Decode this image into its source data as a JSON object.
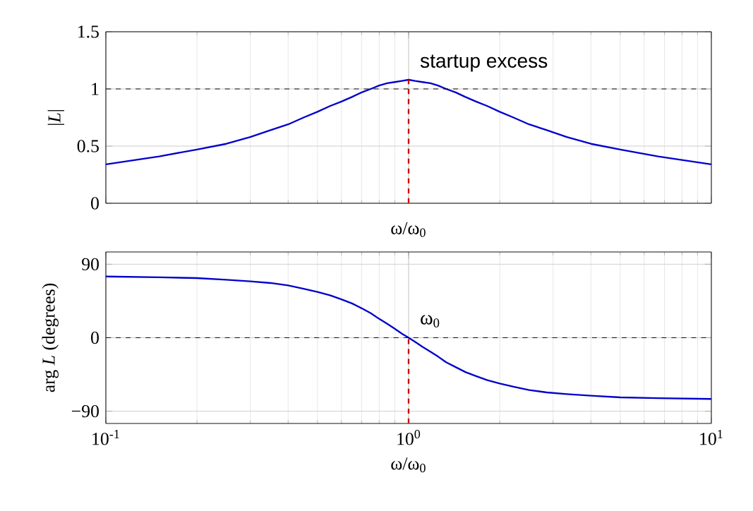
{
  "chart_data": [
    {
      "type": "line",
      "xlabel": "ω/ω$_{0}$",
      "ylabel": "|*L*|",
      "log": "x",
      "grid": true,
      "tick_labels": "y",
      "xlim": [
        0.1,
        10
      ],
      "xticks": [
        {
          "value": 0.1,
          "label": null
        },
        {
          "value": 1,
          "label": null
        },
        {
          "value": 10,
          "label": null
        }
      ],
      "ylim": [
        0,
        1.5
      ],
      "yticks": [
        0,
        0.5,
        1,
        1.5
      ],
      "series": [
        {
          "color": "#0000cc",
          "x": [
            0.1,
            0.15,
            0.2,
            0.25,
            0.3,
            0.35,
            0.4,
            0.45,
            0.5,
            0.55,
            0.6,
            0.65,
            0.7,
            0.75,
            0.8,
            0.85,
            0.9,
            0.95,
            1,
            1.05,
            1.11,
            1.18,
            1.25,
            1.33,
            1.43,
            1.54,
            1.67,
            1.82,
            2,
            2.22,
            2.5,
            2.86,
            3.33,
            4,
            5,
            6.67,
            10
          ],
          "values": [
            0.34,
            0.41,
            0.47,
            0.52,
            0.58,
            0.64,
            0.69,
            0.75,
            0.8,
            0.85,
            0.89,
            0.93,
            0.97,
            1.0,
            1.03,
            1.05,
            1.06,
            1.07,
            1.08,
            1.07,
            1.06,
            1.05,
            1.03,
            1.0,
            0.97,
            0.93,
            0.89,
            0.85,
            0.8,
            0.75,
            0.69,
            0.64,
            0.58,
            0.52,
            0.47,
            0.41,
            0.34
          ],
          "line_style": "solid"
        },
        {
          "color": "#cc0000",
          "x": [
            1,
            1
          ],
          "values": [
            0,
            1.08
          ],
          "line_style": "dashed"
        }
      ],
      "ref_lines": [
        {
          "axis": "y",
          "value": 1,
          "color": "#000000",
          "line_style": "dashed"
        }
      ],
      "annotations": [
        "startup excess"
      ]
    },
    {
      "type": "line",
      "xlabel": "ω/ω$_{0}$",
      "ylabel": "arg *L* (degrees)",
      "log": "x",
      "grid": true,
      "xlim": [
        0.1,
        10
      ],
      "xticks": [
        {
          "value": 0.1,
          "label": "10$^{-1}$"
        },
        {
          "value": 1,
          "label": "10$^{0}$"
        },
        {
          "value": 10,
          "label": "10$^{1}$"
        }
      ],
      "ylim": [
        -105,
        105
      ],
      "yticks": [
        {
          "value": -90,
          "label": "−90"
        },
        0,
        90
      ],
      "series": [
        {
          "color": "#0000cc",
          "x": [
            0.1,
            0.15,
            0.2,
            0.25,
            0.3,
            0.35,
            0.4,
            0.45,
            0.5,
            0.55,
            0.6,
            0.65,
            0.7,
            0.75,
            0.8,
            0.85,
            0.9,
            0.95,
            1,
            1.05,
            1.11,
            1.18,
            1.25,
            1.33,
            1.43,
            1.54,
            1.67,
            1.82,
            2,
            2.22,
            2.5,
            2.86,
            3.33,
            4,
            5,
            6.67,
            10
          ],
          "values": [
            75,
            74,
            73,
            71,
            69,
            67,
            64,
            60,
            56,
            52,
            47,
            42,
            36,
            30,
            23,
            17,
            11,
            5,
            0,
            -5,
            -11,
            -17,
            -23,
            -30,
            -36,
            -42,
            -47,
            -52,
            -56,
            -60,
            -64,
            -67,
            -69,
            -71,
            -73,
            -74,
            -75
          ],
          "line_style": "solid"
        },
        {
          "color": "#cc0000",
          "x": [
            1,
            1
          ],
          "values": [
            -105,
            0
          ],
          "line_style": "dashed"
        }
      ],
      "ref_lines": [
        {
          "axis": "y",
          "value": 0,
          "color": "#000000",
          "line_style": "dashed"
        }
      ],
      "annotations": [
        "ω$_{0}$"
      ]
    }
  ]
}
